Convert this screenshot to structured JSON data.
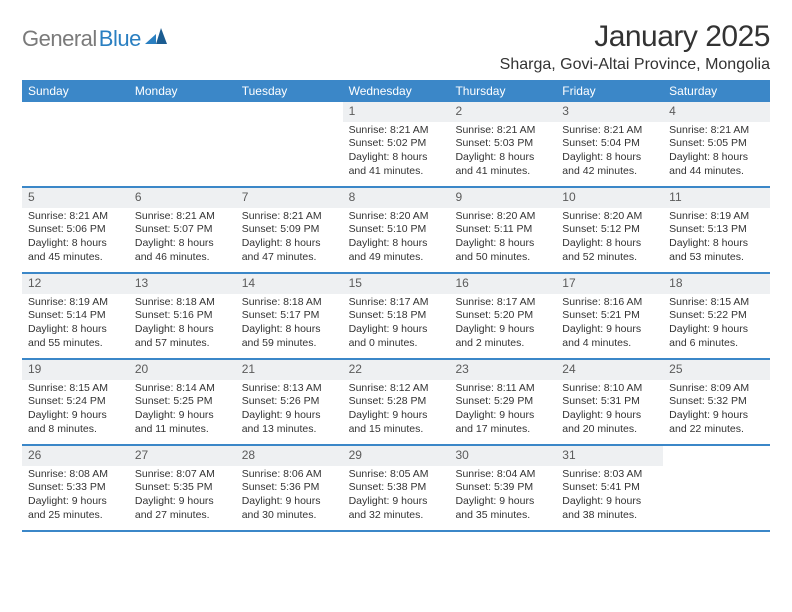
{
  "logo": {
    "word1": "General",
    "word2": "Blue"
  },
  "title": "January 2025",
  "location": "Sharga, Govi-Altai Province, Mongolia",
  "colors": {
    "header_bg": "#3b87c8",
    "header_text": "#ffffff",
    "daynum_bg": "#eef0f2",
    "daynum_text": "#5b5b5b",
    "body_text": "#333333",
    "logo_gray": "#7a7a7a",
    "logo_blue": "#2a7fc1",
    "row_divider": "#3b87c8"
  },
  "typography": {
    "title_fontsize": 30,
    "location_fontsize": 16,
    "header_fontsize": 12,
    "daynum_fontsize": 12,
    "cell_fontsize": 10.5
  },
  "day_names": [
    "Sunday",
    "Monday",
    "Tuesday",
    "Wednesday",
    "Thursday",
    "Friday",
    "Saturday"
  ],
  "weeks": [
    [
      {
        "num": "",
        "sunrise": "",
        "sunset": "",
        "daylight": ""
      },
      {
        "num": "",
        "sunrise": "",
        "sunset": "",
        "daylight": ""
      },
      {
        "num": "",
        "sunrise": "",
        "sunset": "",
        "daylight": ""
      },
      {
        "num": "1",
        "sunrise": "Sunrise: 8:21 AM",
        "sunset": "Sunset: 5:02 PM",
        "daylight": "Daylight: 8 hours and 41 minutes."
      },
      {
        "num": "2",
        "sunrise": "Sunrise: 8:21 AM",
        "sunset": "Sunset: 5:03 PM",
        "daylight": "Daylight: 8 hours and 41 minutes."
      },
      {
        "num": "3",
        "sunrise": "Sunrise: 8:21 AM",
        "sunset": "Sunset: 5:04 PM",
        "daylight": "Daylight: 8 hours and 42 minutes."
      },
      {
        "num": "4",
        "sunrise": "Sunrise: 8:21 AM",
        "sunset": "Sunset: 5:05 PM",
        "daylight": "Daylight: 8 hours and 44 minutes."
      }
    ],
    [
      {
        "num": "5",
        "sunrise": "Sunrise: 8:21 AM",
        "sunset": "Sunset: 5:06 PM",
        "daylight": "Daylight: 8 hours and 45 minutes."
      },
      {
        "num": "6",
        "sunrise": "Sunrise: 8:21 AM",
        "sunset": "Sunset: 5:07 PM",
        "daylight": "Daylight: 8 hours and 46 minutes."
      },
      {
        "num": "7",
        "sunrise": "Sunrise: 8:21 AM",
        "sunset": "Sunset: 5:09 PM",
        "daylight": "Daylight: 8 hours and 47 minutes."
      },
      {
        "num": "8",
        "sunrise": "Sunrise: 8:20 AM",
        "sunset": "Sunset: 5:10 PM",
        "daylight": "Daylight: 8 hours and 49 minutes."
      },
      {
        "num": "9",
        "sunrise": "Sunrise: 8:20 AM",
        "sunset": "Sunset: 5:11 PM",
        "daylight": "Daylight: 8 hours and 50 minutes."
      },
      {
        "num": "10",
        "sunrise": "Sunrise: 8:20 AM",
        "sunset": "Sunset: 5:12 PM",
        "daylight": "Daylight: 8 hours and 52 minutes."
      },
      {
        "num": "11",
        "sunrise": "Sunrise: 8:19 AM",
        "sunset": "Sunset: 5:13 PM",
        "daylight": "Daylight: 8 hours and 53 minutes."
      }
    ],
    [
      {
        "num": "12",
        "sunrise": "Sunrise: 8:19 AM",
        "sunset": "Sunset: 5:14 PM",
        "daylight": "Daylight: 8 hours and 55 minutes."
      },
      {
        "num": "13",
        "sunrise": "Sunrise: 8:18 AM",
        "sunset": "Sunset: 5:16 PM",
        "daylight": "Daylight: 8 hours and 57 minutes."
      },
      {
        "num": "14",
        "sunrise": "Sunrise: 8:18 AM",
        "sunset": "Sunset: 5:17 PM",
        "daylight": "Daylight: 8 hours and 59 minutes."
      },
      {
        "num": "15",
        "sunrise": "Sunrise: 8:17 AM",
        "sunset": "Sunset: 5:18 PM",
        "daylight": "Daylight: 9 hours and 0 minutes."
      },
      {
        "num": "16",
        "sunrise": "Sunrise: 8:17 AM",
        "sunset": "Sunset: 5:20 PM",
        "daylight": "Daylight: 9 hours and 2 minutes."
      },
      {
        "num": "17",
        "sunrise": "Sunrise: 8:16 AM",
        "sunset": "Sunset: 5:21 PM",
        "daylight": "Daylight: 9 hours and 4 minutes."
      },
      {
        "num": "18",
        "sunrise": "Sunrise: 8:15 AM",
        "sunset": "Sunset: 5:22 PM",
        "daylight": "Daylight: 9 hours and 6 minutes."
      }
    ],
    [
      {
        "num": "19",
        "sunrise": "Sunrise: 8:15 AM",
        "sunset": "Sunset: 5:24 PM",
        "daylight": "Daylight: 9 hours and 8 minutes."
      },
      {
        "num": "20",
        "sunrise": "Sunrise: 8:14 AM",
        "sunset": "Sunset: 5:25 PM",
        "daylight": "Daylight: 9 hours and 11 minutes."
      },
      {
        "num": "21",
        "sunrise": "Sunrise: 8:13 AM",
        "sunset": "Sunset: 5:26 PM",
        "daylight": "Daylight: 9 hours and 13 minutes."
      },
      {
        "num": "22",
        "sunrise": "Sunrise: 8:12 AM",
        "sunset": "Sunset: 5:28 PM",
        "daylight": "Daylight: 9 hours and 15 minutes."
      },
      {
        "num": "23",
        "sunrise": "Sunrise: 8:11 AM",
        "sunset": "Sunset: 5:29 PM",
        "daylight": "Daylight: 9 hours and 17 minutes."
      },
      {
        "num": "24",
        "sunrise": "Sunrise: 8:10 AM",
        "sunset": "Sunset: 5:31 PM",
        "daylight": "Daylight: 9 hours and 20 minutes."
      },
      {
        "num": "25",
        "sunrise": "Sunrise: 8:09 AM",
        "sunset": "Sunset: 5:32 PM",
        "daylight": "Daylight: 9 hours and 22 minutes."
      }
    ],
    [
      {
        "num": "26",
        "sunrise": "Sunrise: 8:08 AM",
        "sunset": "Sunset: 5:33 PM",
        "daylight": "Daylight: 9 hours and 25 minutes."
      },
      {
        "num": "27",
        "sunrise": "Sunrise: 8:07 AM",
        "sunset": "Sunset: 5:35 PM",
        "daylight": "Daylight: 9 hours and 27 minutes."
      },
      {
        "num": "28",
        "sunrise": "Sunrise: 8:06 AM",
        "sunset": "Sunset: 5:36 PM",
        "daylight": "Daylight: 9 hours and 30 minutes."
      },
      {
        "num": "29",
        "sunrise": "Sunrise: 8:05 AM",
        "sunset": "Sunset: 5:38 PM",
        "daylight": "Daylight: 9 hours and 32 minutes."
      },
      {
        "num": "30",
        "sunrise": "Sunrise: 8:04 AM",
        "sunset": "Sunset: 5:39 PM",
        "daylight": "Daylight: 9 hours and 35 minutes."
      },
      {
        "num": "31",
        "sunrise": "Sunrise: 8:03 AM",
        "sunset": "Sunset: 5:41 PM",
        "daylight": "Daylight: 9 hours and 38 minutes."
      },
      {
        "num": "",
        "sunrise": "",
        "sunset": "",
        "daylight": ""
      }
    ]
  ]
}
